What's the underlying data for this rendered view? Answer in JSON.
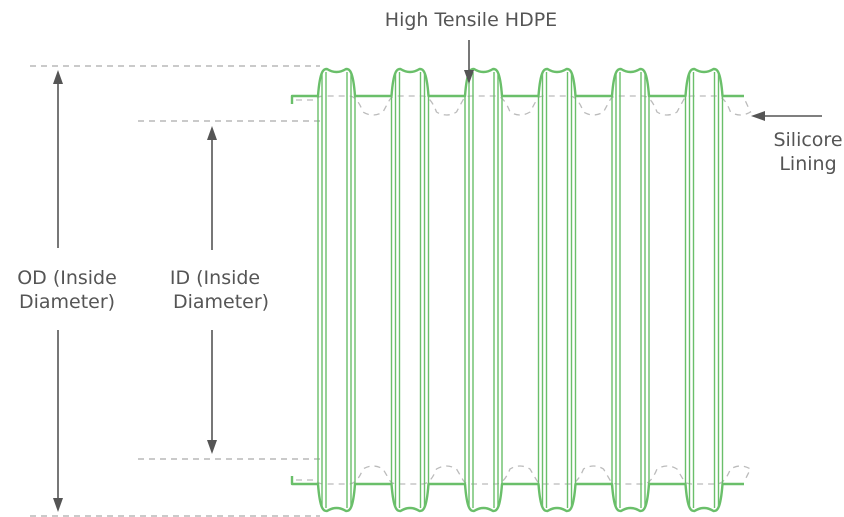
{
  "labels": {
    "hdpe": "High Tensile HDPE",
    "lining_line1": "Silicore",
    "lining_line2": "Lining",
    "od_line1": "OD (Inside",
    "od_line2": "Diameter)",
    "id_line1": "ID (Inside",
    "id_line2": "Diameter)"
  },
  "colors": {
    "pipe": "#6abf6a",
    "text": "#555555",
    "guide": "#aaaaaa",
    "lining": "#bbbbbb"
  }
}
